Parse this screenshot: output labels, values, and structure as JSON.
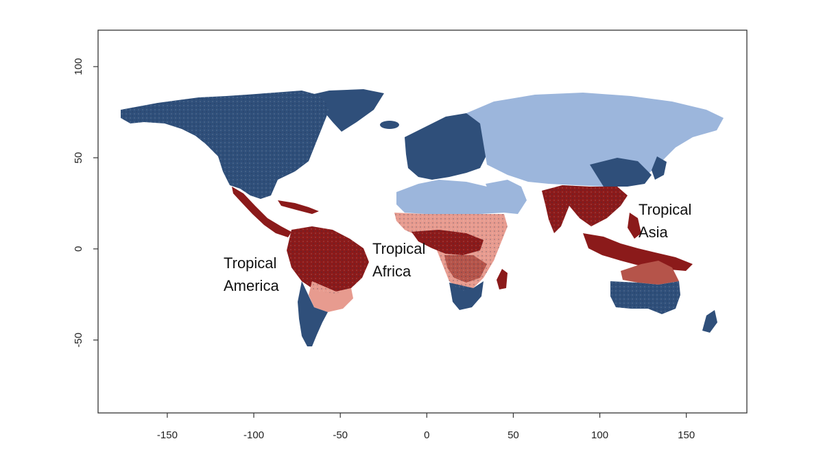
{
  "map": {
    "x_axis": {
      "range": [
        -190,
        185
      ],
      "ticks": [
        -150,
        -100,
        -50,
        0,
        50,
        100,
        150
      ],
      "labels": [
        "-150",
        "-100",
        "-50",
        "0",
        "50",
        "100",
        "150"
      ]
    },
    "y_axis": {
      "range": [
        -90,
        120
      ],
      "ticks": [
        -50,
        0,
        50,
        100
      ],
      "labels": [
        "-50",
        "0",
        "50",
        "100"
      ]
    },
    "colors": {
      "temperate": "#2f4f7a",
      "boreal": "#9cb6dc",
      "tropical_moist": "#8b1a1a",
      "tropical_dry": "#e79b8f",
      "tropical_mixed": "#b5544a"
    },
    "regions": [
      {
        "name": "tropical-america",
        "lines": [
          "Tropical",
          "America"
        ]
      },
      {
        "name": "tropical-africa",
        "lines": [
          "Tropical",
          "Africa"
        ]
      },
      {
        "name": "tropical-asia",
        "lines": [
          "Tropical",
          "Asia"
        ]
      }
    ]
  }
}
